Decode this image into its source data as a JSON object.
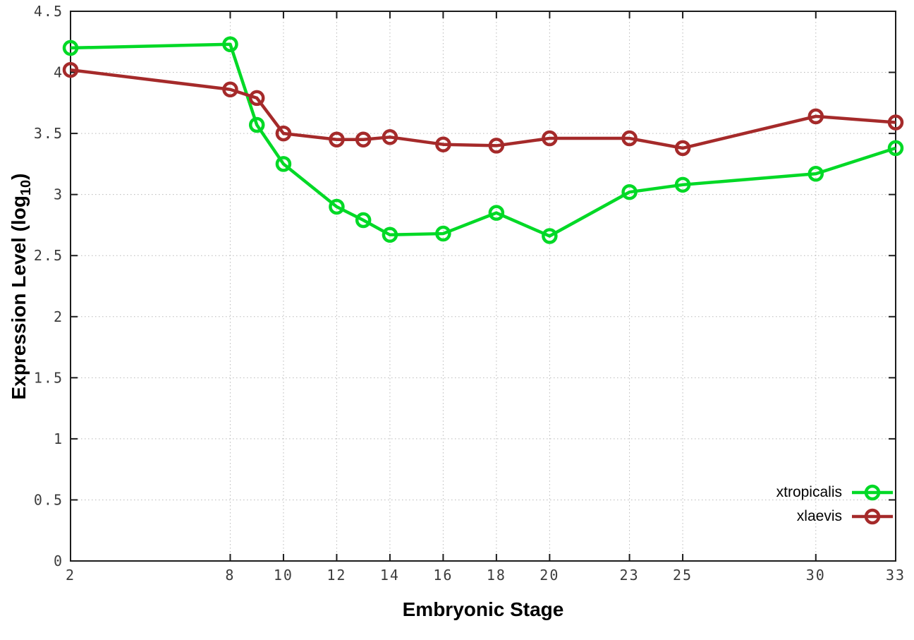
{
  "figure": {
    "background": "#ffffff",
    "frame_color": "#1c1c1c",
    "grid_color": "#b9b9b9"
  },
  "chart_data": {
    "type": "line",
    "title": "",
    "xlabel": "Embryonic Stage",
    "ylabel": "Expression Level (log10)",
    "ylabel_parts": {
      "main": "Expression Level (log",
      "sub": "10",
      "close": ")"
    },
    "xlim": [
      2,
      33
    ],
    "ylim": [
      0,
      4.5
    ],
    "grid": true,
    "legend_position": "bottom-right",
    "x": [
      2,
      8,
      9,
      10,
      12,
      13,
      14,
      16,
      18,
      20,
      23,
      25,
      30,
      33
    ],
    "x_ticks": [
      2,
      8,
      10,
      12,
      14,
      16,
      18,
      20,
      23,
      25,
      30,
      33
    ],
    "x_tick_labels": [
      "2",
      "8",
      "10",
      "12",
      "14",
      "16",
      "18",
      "20",
      "23",
      "25",
      "30",
      "33"
    ],
    "y_ticks": [
      0,
      0.5,
      1,
      1.5,
      2,
      2.5,
      3,
      3.5,
      4,
      4.5
    ],
    "y_tick_labels": [
      "0",
      "0.5",
      "1",
      "1.5",
      "2",
      "2.5",
      "3",
      "3.5",
      "4",
      "4.5"
    ],
    "series": [
      {
        "name": "xtropicalis",
        "color": "#00d926",
        "marker": "open-circle",
        "values": [
          4.2,
          4.23,
          3.57,
          3.25,
          2.9,
          2.79,
          2.67,
          2.68,
          2.85,
          2.66,
          3.02,
          3.08,
          3.17,
          3.38
        ]
      },
      {
        "name": "xlaevis",
        "color": "#a52a2a",
        "marker": "open-circle",
        "values": [
          4.02,
          3.86,
          3.79,
          3.5,
          3.45,
          3.45,
          3.47,
          3.41,
          3.4,
          3.46,
          3.46,
          3.38,
          3.64,
          3.59
        ]
      }
    ]
  }
}
